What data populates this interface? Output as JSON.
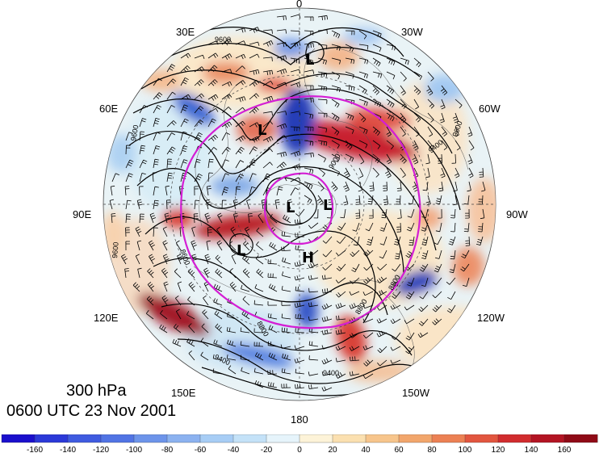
{
  "map": {
    "level_label": "300 hPa",
    "time_label": "0600 UTC 23 Nov 2001",
    "longitude_labels": [
      "0",
      "30W",
      "60W",
      "90W",
      "120W",
      "150W",
      "180",
      "150E",
      "120E",
      "90E",
      "60E",
      "30E"
    ],
    "pressure_centers": [
      {
        "symbol": "L",
        "region": "north-atlantic"
      },
      {
        "symbol": "L",
        "region": "north-europe"
      },
      {
        "symbol": "L",
        "region": "pole"
      },
      {
        "symbol": "L",
        "region": "pole-east"
      },
      {
        "symbol": "L",
        "region": "central-asia"
      },
      {
        "symbol": "H",
        "region": "east-siberia"
      }
    ],
    "contour_labels": [
      "9600",
      "9600",
      "9400",
      "9400",
      "9000",
      "8800",
      "8800",
      "8600",
      "8800",
      "9400",
      "9600",
      "9600"
    ],
    "colors": {
      "positive": "#b40b1e",
      "negative": "#1f37b8",
      "contours": "#000000",
      "overlay_rings": "#d41ed4"
    }
  },
  "colorbar": {
    "labels": [
      "-160",
      "-140",
      "-120",
      "-100",
      "-80",
      "-60",
      "-40",
      "-20",
      "0",
      "20",
      "40",
      "60",
      "80",
      "100",
      "120",
      "140",
      "160"
    ],
    "colors": [
      "#1a0fcc",
      "#2b39d8",
      "#3f5be0",
      "#5174e4",
      "#6d94ea",
      "#8cb2f0",
      "#a7cdf5",
      "#c4e2f8",
      "#e6f4fb",
      "#fdf3d8",
      "#fbe0b0",
      "#f7c58c",
      "#f2a66c",
      "#ec8154",
      "#e2563f",
      "#d12c2e",
      "#b31423",
      "#8f0a16"
    ]
  }
}
